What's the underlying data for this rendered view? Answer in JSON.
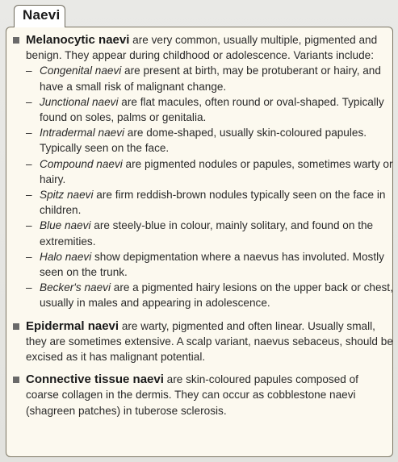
{
  "box": {
    "title": "Naevi"
  },
  "melanocytic": {
    "term": "Melanocytic naevi",
    "text": " are very common, usually multiple, pigmented and benign. They appear during childhood or adolescence. Variants include:",
    "variants": [
      {
        "term": "Congenital naevi",
        "text": " are present at birth, may be protuberant or hairy, and have a small risk of malignant change."
      },
      {
        "term": "Junctional naevi",
        "text": " are flat macules, often round or oval-shaped. Typically found on soles, palms or genitalia."
      },
      {
        "term": "Intradermal naevi",
        "text": " are dome-shaped, usually skin-coloured papules. Typically seen on the face."
      },
      {
        "term": "Compound naevi",
        "text": " are pigmented nodules or papules, sometimes warty or hairy."
      },
      {
        "term": "Spitz naevi",
        "text": " are firm reddish-brown nodules typically seen on the face in children."
      },
      {
        "term": "Blue naevi",
        "text": " are steely-blue in colour, mainly solitary, and found on the extremities."
      },
      {
        "term": "Halo naevi",
        "text": " show depigmentation where a naevus has involuted. Mostly seen on the trunk."
      },
      {
        "term": "Becker's naevi",
        "text": " are a pigmented hairy lesions on the upper back or chest, usually in males and appearing in adolescence."
      }
    ]
  },
  "epidermal": {
    "term": "Epidermal naevi",
    "text": " are warty, pigmented and often linear. Usually small, they are sometimes extensive. A scalp variant, naevus sebaceus, should be excised as it has malignant potential."
  },
  "connective": {
    "term": "Connective tissue naevi",
    "text": " are skin-coloured papules composed of coarse collagen in the dermis. They can occur as cobblestone naevi (shagreen patches) in tuberose sclerosis."
  }
}
